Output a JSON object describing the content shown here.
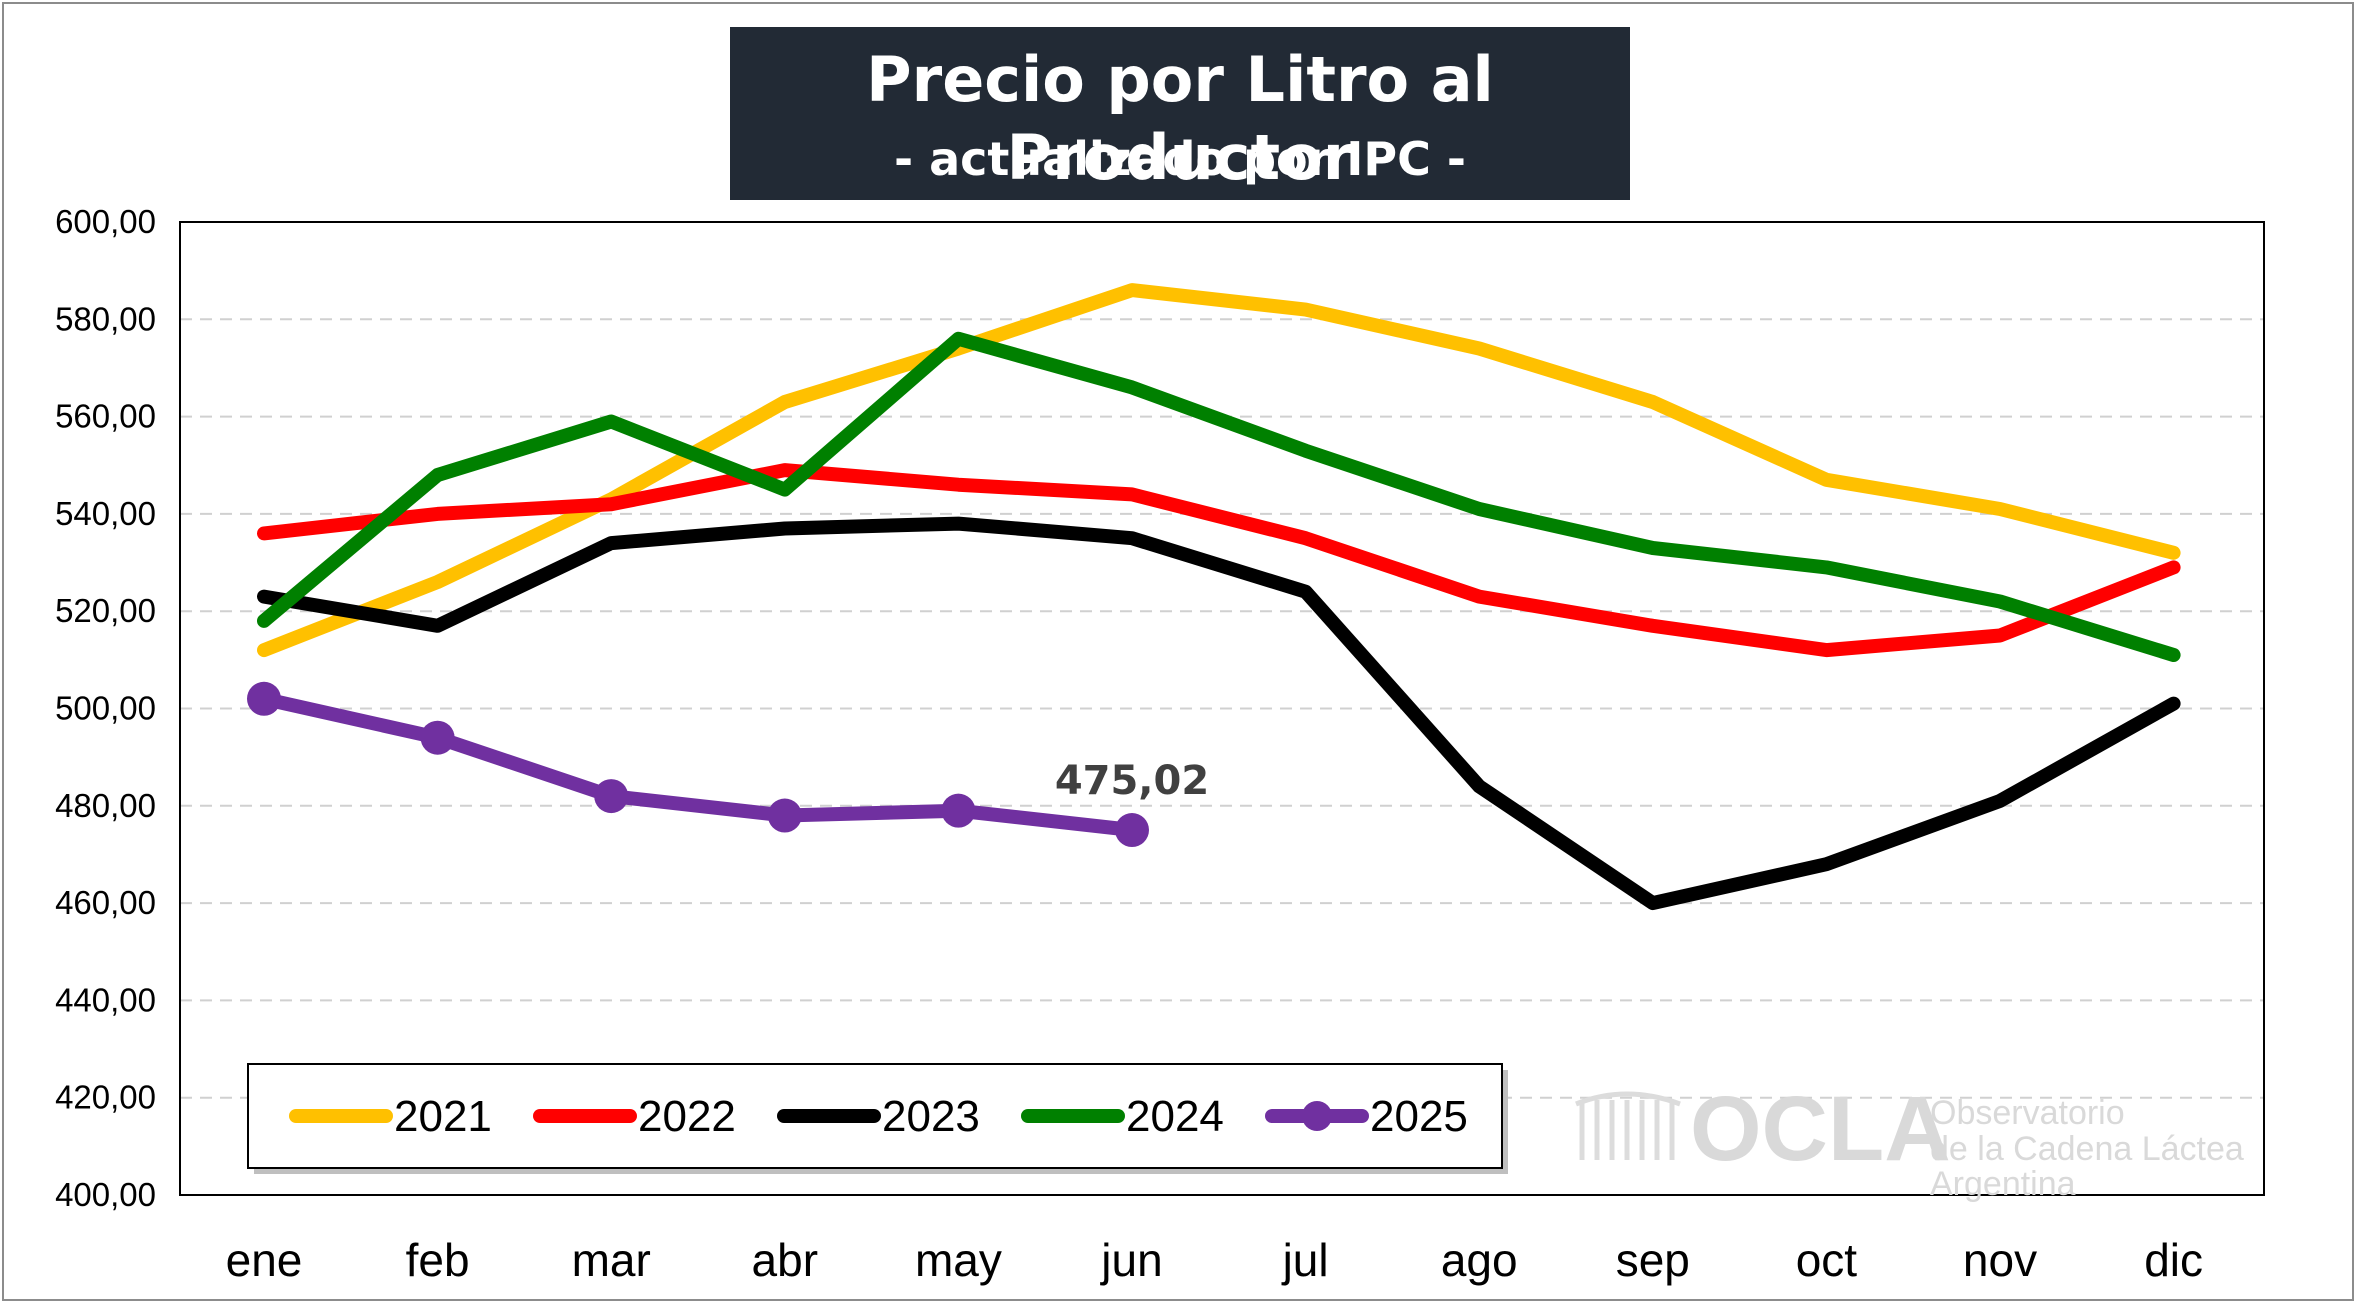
{
  "chart_data": {
    "type": "line",
    "title": "Precio por Litro al Productor",
    "subtitle": "- actualizado por IPC -",
    "xlabel": "",
    "ylabel": "",
    "categories": [
      "ene",
      "feb",
      "mar",
      "abr",
      "may",
      "jun",
      "jul",
      "ago",
      "sep",
      "oct",
      "nov",
      "dic"
    ],
    "ylim": [
      400,
      600
    ],
    "yticks": [
      "400,00",
      "420,00",
      "440,00",
      "460,00",
      "480,00",
      "500,00",
      "520,00",
      "540,00",
      "560,00",
      "580,00",
      "600,00"
    ],
    "ytick_values": [
      400,
      420,
      440,
      460,
      480,
      500,
      520,
      540,
      560,
      580,
      600
    ],
    "grid": "horizontal dashed",
    "legend_placement": "bottom-left",
    "series": [
      {
        "name": "2021",
        "color": "#ffc000",
        "markers": false,
        "values": [
          512,
          526,
          543,
          563,
          574,
          586,
          582,
          574,
          563,
          547,
          541,
          532
        ]
      },
      {
        "name": "2022",
        "color": "#ff0000",
        "markers": false,
        "values": [
          536,
          540,
          542,
          549,
          546,
          544,
          535,
          523,
          517,
          512,
          515,
          529
        ]
      },
      {
        "name": "2023",
        "color": "#000000",
        "markers": false,
        "values": [
          523,
          517,
          534,
          537,
          538,
          535,
          524,
          484,
          460,
          468,
          481,
          501
        ]
      },
      {
        "name": "2024",
        "color": "#008000",
        "markers": false,
        "values": [
          518,
          548,
          559,
          545,
          576,
          566,
          553,
          541,
          533,
          529,
          522,
          511
        ]
      },
      {
        "name": "2025",
        "color": "#7030a0",
        "markers": true,
        "values": [
          502,
          494,
          482,
          478,
          479,
          475.02,
          null,
          null,
          null,
          null,
          null,
          null
        ]
      }
    ],
    "annotations": [
      {
        "series": "2025",
        "category": "jun",
        "text": "475,02"
      }
    ]
  },
  "watermark": {
    "brand": "OCLA",
    "line1": "Observatorio",
    "line2": "de la Cadena Láctea",
    "line3": "Argentina"
  }
}
